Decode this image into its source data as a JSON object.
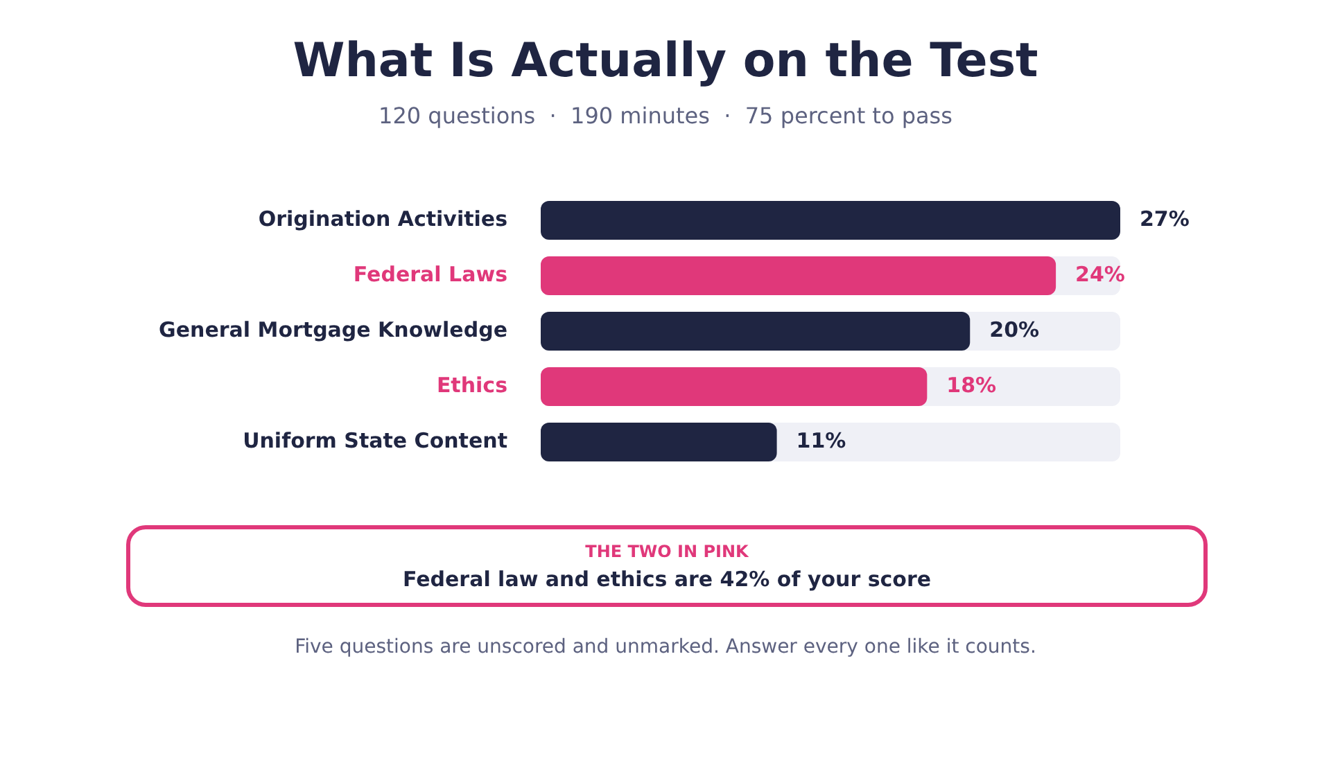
{
  "chart_data": {
    "type": "bar",
    "orientation": "horizontal",
    "title": "What Is Actually on the Test",
    "subtitle": "120 questions  ·  190 minutes  ·  75 percent to pass",
    "categories": [
      "Origination Activities",
      "Federal Laws",
      "General Mortgage Knowledge",
      "Ethics",
      "Uniform State Content"
    ],
    "values": [
      27,
      24,
      20,
      18,
      11
    ],
    "value_labels": [
      "27%",
      "24%",
      "20%",
      "18%",
      "11%"
    ],
    "colors": [
      "#1f2542",
      "#e0387a",
      "#1f2542",
      "#e0387a",
      "#1f2542"
    ],
    "xlim": [
      0,
      27
    ],
    "tick_labels": "y",
    "legend": false,
    "annotations": [
      "THE TWO IN PINK",
      "Federal law and ethics are 42% of your score",
      "Five questions are unscored and unmarked. Answer every one like it counts."
    ]
  }
}
